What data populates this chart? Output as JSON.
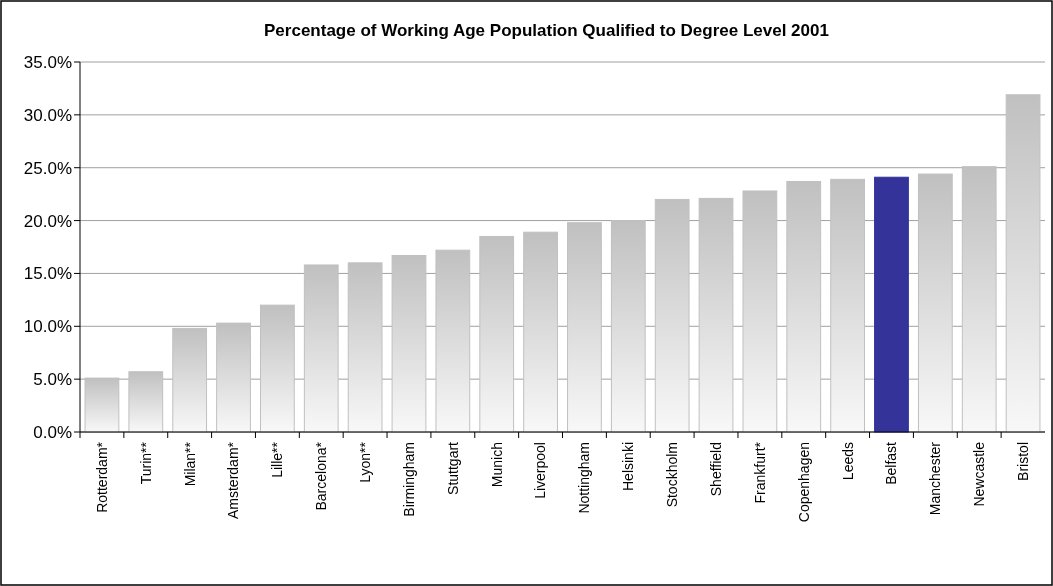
{
  "chart_data": {
    "type": "bar",
    "title": "Percentage of Working Age Population Qualified to Degree Level 2001",
    "categories": [
      "Rotterdam*",
      "Turin**",
      "Milan**",
      "Amsterdam*",
      "Lille**",
      "Barcelona*",
      "Lyon**",
      "Birmingham",
      "Stuttgart",
      "Munich",
      "Liverpool",
      "Nottingham",
      "Helsinki",
      "Stockholm",
      "Sheffield",
      "Frankfurt*",
      "Copenhagen",
      "Leeds",
      "Belfast",
      "Manchester",
      "Newcastle",
      "Bristol"
    ],
    "values": [
      5.1,
      5.7,
      9.8,
      10.3,
      12.0,
      15.8,
      16.0,
      16.7,
      17.2,
      18.5,
      18.9,
      19.8,
      20.0,
      22.0,
      22.1,
      22.8,
      23.7,
      23.9,
      24.1,
      24.4,
      25.1,
      31.9
    ],
    "colors": [
      "#c0c0c0",
      "#c0c0c0",
      "#c0c0c0",
      "#c0c0c0",
      "#c0c0c0",
      "#c0c0c0",
      "#c0c0c0",
      "#c0c0c0",
      "#c0c0c0",
      "#c0c0c0",
      "#c0c0c0",
      "#c0c0c0",
      "#c0c0c0",
      "#c0c0c0",
      "#c0c0c0",
      "#c0c0c0",
      "#c0c0c0",
      "#c0c0c0",
      "#333399",
      "#c0c0c0",
      "#c0c0c0",
      "#c0c0c0"
    ],
    "ylim": [
      0,
      35
    ],
    "yticks": [
      {
        "value": 0,
        "label": "0.0%"
      },
      {
        "value": 5,
        "label": "5.0%"
      },
      {
        "value": 10,
        "label": "10.0%"
      },
      {
        "value": 15,
        "label": "15.0%"
      },
      {
        "value": 20,
        "label": "20.0%"
      },
      {
        "value": 25,
        "label": "25.0%"
      },
      {
        "value": 30,
        "label": "30.0%"
      },
      {
        "value": 35,
        "label": "35.0%"
      }
    ],
    "grid": "y"
  }
}
